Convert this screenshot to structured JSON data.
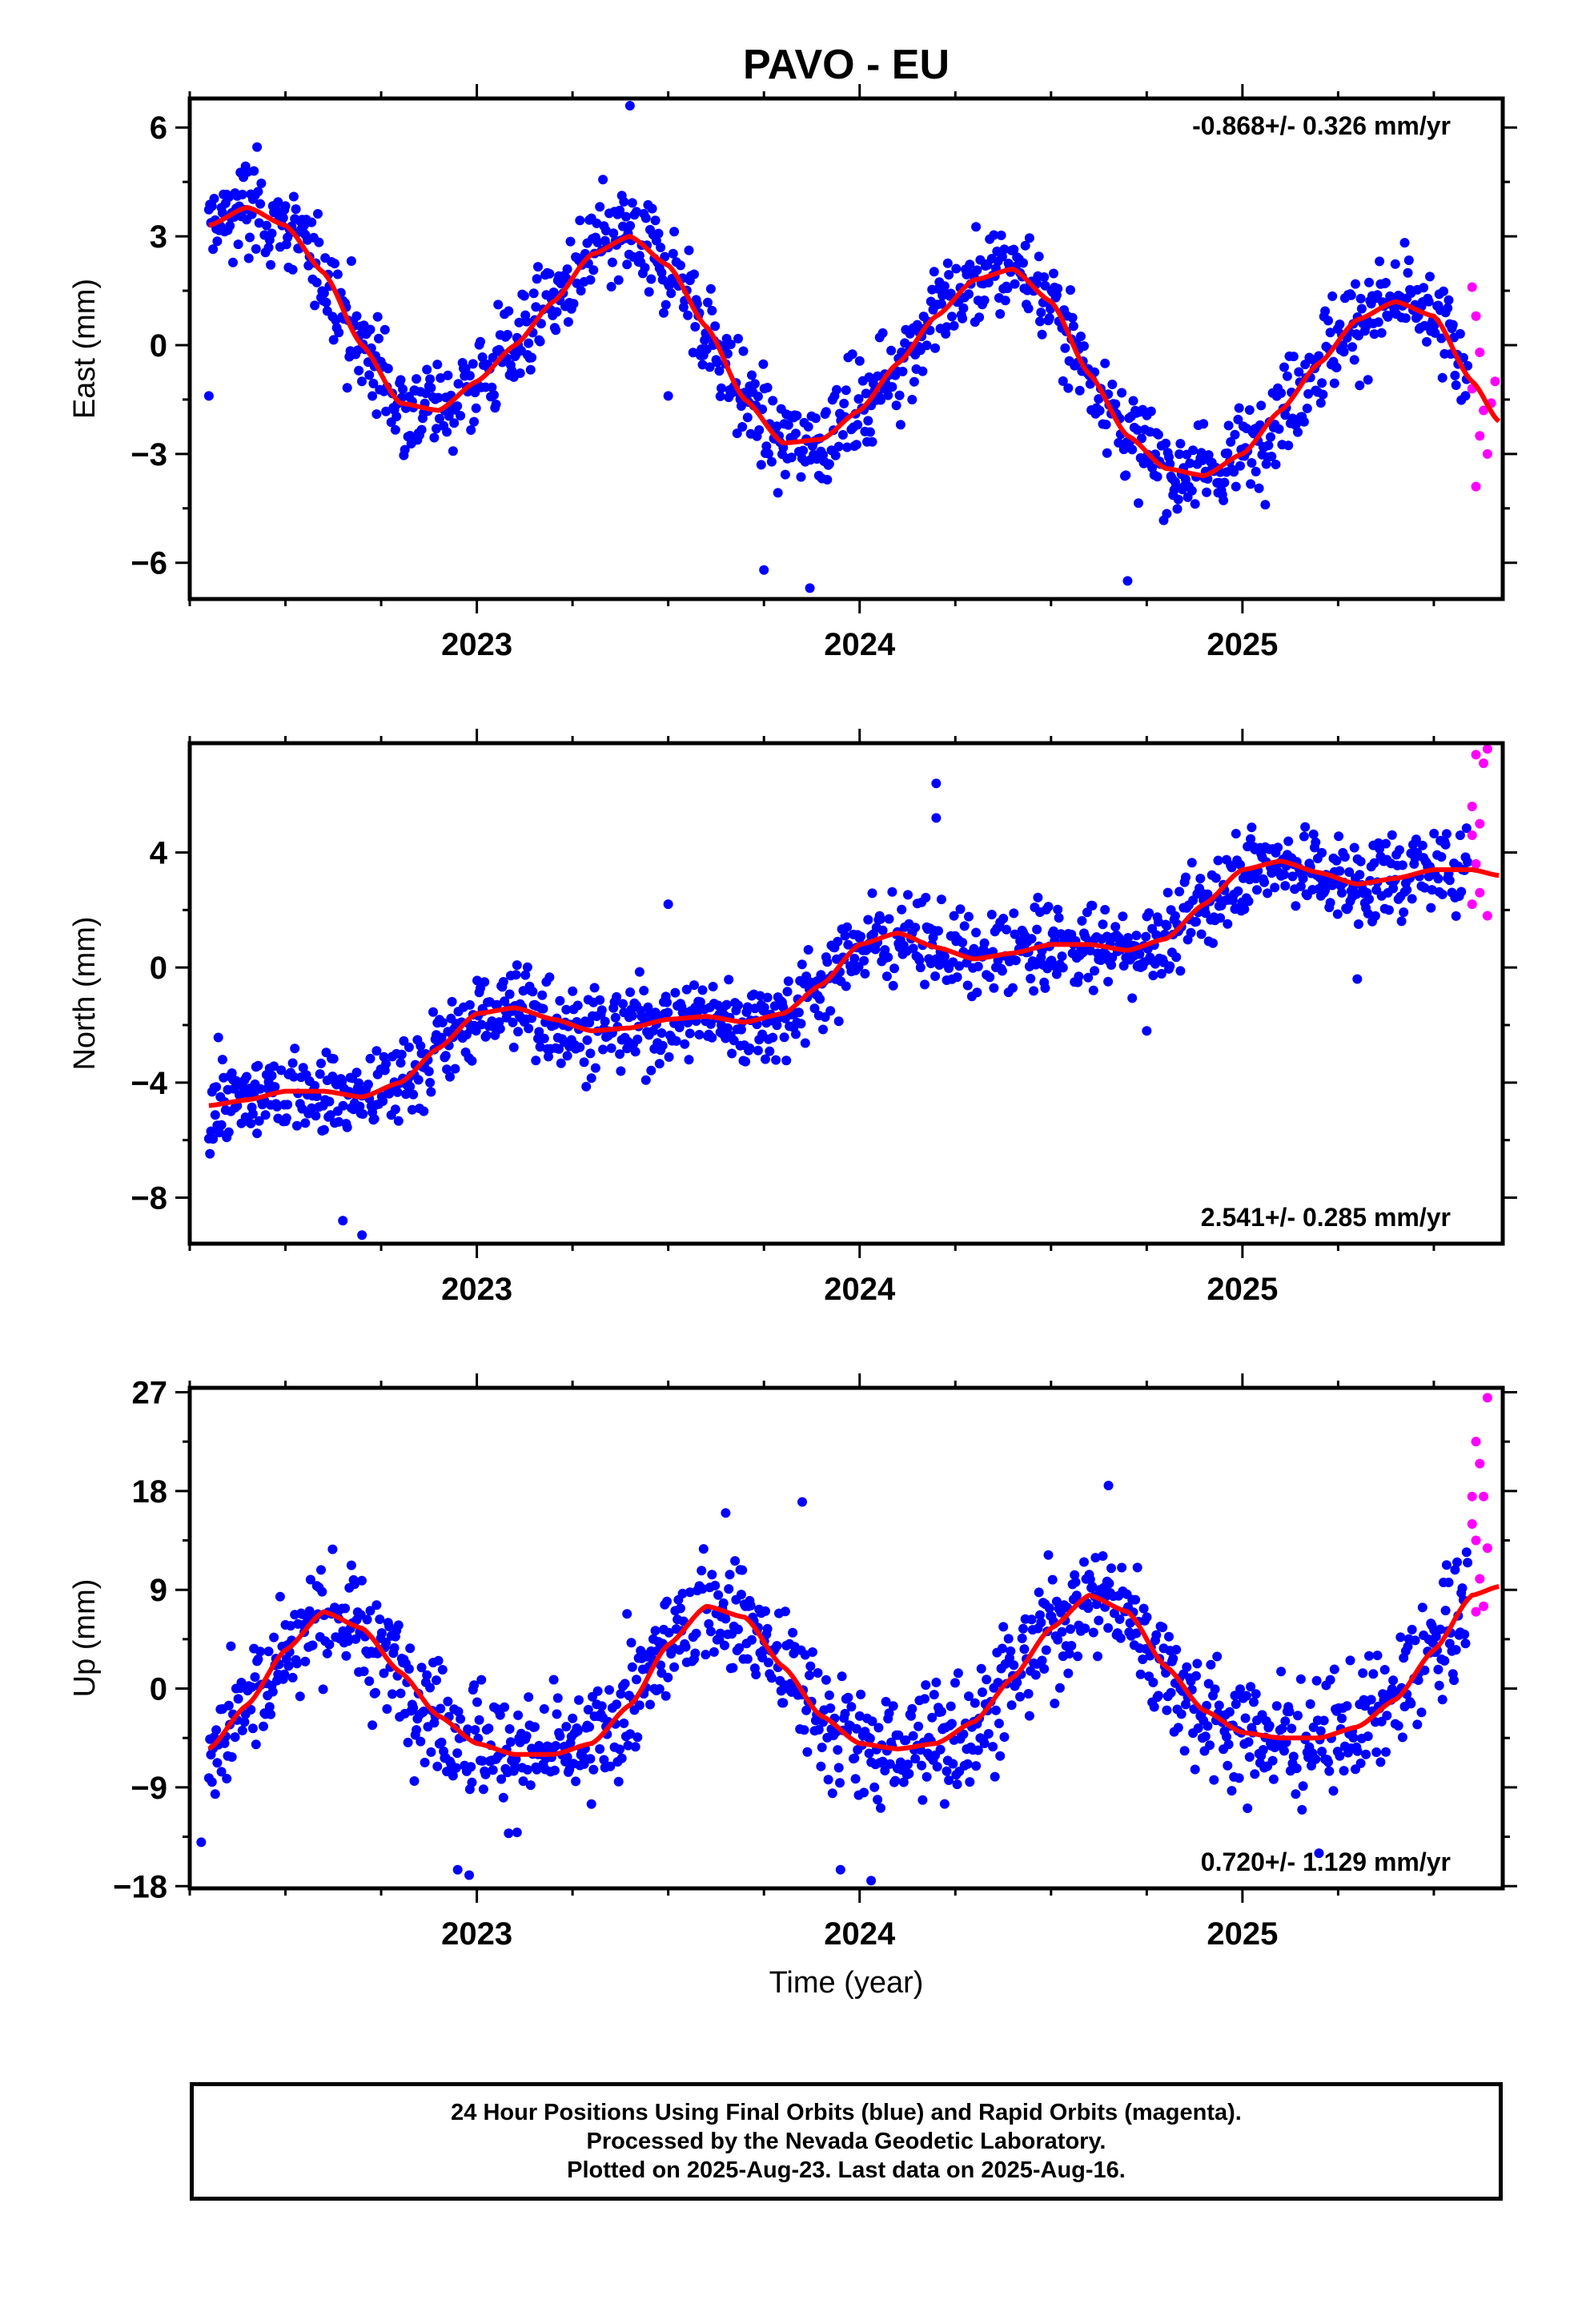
{
  "title": "PAVO - EU",
  "chart_data": {
    "type": "scatter",
    "shared_x": {
      "xlim": [
        2022.25,
        2025.68
      ],
      "major_ticks": [
        2023,
        2024,
        2025
      ],
      "tick_labels": [
        "2023",
        "2024",
        "2025"
      ],
      "minor_step": 0.25
    },
    "xlabel": "Time (year)",
    "panels": [
      {
        "id": "east",
        "ylabel": "East (mm)",
        "ylim": [
          -7.0,
          6.8
        ],
        "yticks": [
          -6,
          -3,
          0,
          3,
          6
        ],
        "ytick_labels": [
          "−6",
          "−3",
          "0",
          "3",
          "6"
        ],
        "velocity_label": "-0.868+/- 0.326 mm/yr",
        "velocity_position": "top-right",
        "grid": false,
        "fit_curve": [
          [
            2022.3,
            3.3
          ],
          [
            2022.4,
            3.8
          ],
          [
            2022.5,
            3.3
          ],
          [
            2022.6,
            2.0
          ],
          [
            2022.7,
            0.0
          ],
          [
            2022.8,
            -1.6
          ],
          [
            2022.9,
            -1.8
          ],
          [
            2023.0,
            -1.0
          ],
          [
            2023.1,
            0.0
          ],
          [
            2023.2,
            1.2
          ],
          [
            2023.3,
            2.5
          ],
          [
            2023.4,
            3.0
          ],
          [
            2023.5,
            2.2
          ],
          [
            2023.6,
            0.5
          ],
          [
            2023.7,
            -1.5
          ],
          [
            2023.8,
            -2.7
          ],
          [
            2023.9,
            -2.6
          ],
          [
            2024.0,
            -1.8
          ],
          [
            2024.1,
            -0.5
          ],
          [
            2024.2,
            0.8
          ],
          [
            2024.3,
            1.8
          ],
          [
            2024.4,
            2.1
          ],
          [
            2024.5,
            1.2
          ],
          [
            2024.6,
            -0.8
          ],
          [
            2024.7,
            -2.5
          ],
          [
            2024.8,
            -3.4
          ],
          [
            2024.9,
            -3.6
          ],
          [
            2025.0,
            -3.0
          ],
          [
            2025.1,
            -1.8
          ],
          [
            2025.2,
            -0.5
          ],
          [
            2025.3,
            0.7
          ],
          [
            2025.4,
            1.2
          ],
          [
            2025.5,
            0.8
          ],
          [
            2025.6,
            -1.0
          ],
          [
            2025.67,
            -2.1
          ]
        ],
        "scatter_sd": 1.0,
        "final_orbits": {
          "legend": "Final Orbits (blue)",
          "start": 2022.3,
          "end": 2025.59
        },
        "rapid_orbits": {
          "legend": "Rapid Orbits (magenta)",
          "points": [
            [
              2025.6,
              1.6
            ],
            [
              2025.61,
              0.8
            ],
            [
              2025.62,
              -0.2
            ],
            [
              2025.6,
              -1.2
            ],
            [
              2025.63,
              -1.8
            ],
            [
              2025.62,
              -2.5
            ],
            [
              2025.64,
              -3.0
            ],
            [
              2025.61,
              -3.9
            ],
            [
              2025.65,
              -1.6
            ],
            [
              2025.66,
              -1.0
            ]
          ]
        },
        "outliers": [
          [
            2023.75,
            -6.2
          ],
          [
            2023.87,
            -6.7
          ],
          [
            2024.7,
            -6.5
          ],
          [
            2023.4,
            6.6
          ],
          [
            2022.3,
            -1.4
          ],
          [
            2023.5,
            -1.4
          ]
        ]
      },
      {
        "id": "north",
        "ylabel": "North (mm)",
        "ylim": [
          -9.6,
          7.8
        ],
        "yticks": [
          -8,
          -4,
          0,
          4
        ],
        "ytick_labels": [
          "−8",
          "−4",
          "0",
          "4"
        ],
        "velocity_label": "2.541+/- 0.285 mm/yr",
        "velocity_position": "bottom-right",
        "grid": false,
        "fit_curve": [
          [
            2022.3,
            -4.8
          ],
          [
            2022.4,
            -4.6
          ],
          [
            2022.5,
            -4.3
          ],
          [
            2022.6,
            -4.3
          ],
          [
            2022.7,
            -4.5
          ],
          [
            2022.8,
            -4.0
          ],
          [
            2022.9,
            -2.8
          ],
          [
            2023.0,
            -1.6
          ],
          [
            2023.1,
            -1.4
          ],
          [
            2023.2,
            -1.8
          ],
          [
            2023.3,
            -2.2
          ],
          [
            2023.4,
            -2.1
          ],
          [
            2023.5,
            -1.8
          ],
          [
            2023.6,
            -1.7
          ],
          [
            2023.7,
            -1.9
          ],
          [
            2023.8,
            -1.6
          ],
          [
            2023.9,
            -0.6
          ],
          [
            2024.0,
            0.8
          ],
          [
            2024.1,
            1.2
          ],
          [
            2024.2,
            0.7
          ],
          [
            2024.3,
            0.3
          ],
          [
            2024.4,
            0.5
          ],
          [
            2024.5,
            0.8
          ],
          [
            2024.6,
            0.8
          ],
          [
            2024.7,
            0.6
          ],
          [
            2024.8,
            1.0
          ],
          [
            2024.9,
            2.2
          ],
          [
            2025.0,
            3.4
          ],
          [
            2025.1,
            3.7
          ],
          [
            2025.2,
            3.3
          ],
          [
            2025.3,
            2.9
          ],
          [
            2025.4,
            3.1
          ],
          [
            2025.5,
            3.4
          ],
          [
            2025.6,
            3.4
          ],
          [
            2025.67,
            3.2
          ]
        ],
        "scatter_sd": 1.1,
        "final_orbits": {
          "legend": "Final Orbits (blue)",
          "start": 2022.3,
          "end": 2025.59
        },
        "rapid_orbits": {
          "legend": "Rapid Orbits (magenta)",
          "points": [
            [
              2025.61,
              7.4
            ],
            [
              2025.63,
              7.1
            ],
            [
              2025.64,
              7.6
            ],
            [
              2025.6,
              5.6
            ],
            [
              2025.62,
              5.0
            ],
            [
              2025.6,
              4.6
            ],
            [
              2025.61,
              3.6
            ],
            [
              2025.62,
              2.6
            ],
            [
              2025.6,
              2.2
            ],
            [
              2025.64,
              1.8
            ]
          ]
        },
        "outliers": [
          [
            2022.65,
            -8.8
          ],
          [
            2022.7,
            -9.3
          ],
          [
            2024.2,
            6.4
          ],
          [
            2024.2,
            5.2
          ],
          [
            2024.75,
            -2.2
          ],
          [
            2025.3,
            -0.4
          ],
          [
            2023.5,
            2.2
          ]
        ]
      },
      {
        "id": "up",
        "ylabel": "Up (mm)",
        "ylim": [
          -18.2,
          27.4
        ],
        "yticks": [
          -18,
          -9,
          0,
          9,
          18,
          27
        ],
        "ytick_labels": [
          "−18",
          "−9",
          "0",
          "9",
          "18",
          "27"
        ],
        "velocity_label": "0.720+/- 1.129 mm/yr",
        "velocity_position": "bottom-right",
        "grid": false,
        "fit_curve": [
          [
            2022.3,
            -5.5
          ],
          [
            2022.4,
            -1.5
          ],
          [
            2022.5,
            3.5
          ],
          [
            2022.6,
            7.0
          ],
          [
            2022.7,
            5.5
          ],
          [
            2022.8,
            1.5
          ],
          [
            2022.9,
            -2.5
          ],
          [
            2023.0,
            -5.0
          ],
          [
            2023.1,
            -6.0
          ],
          [
            2023.2,
            -6.0
          ],
          [
            2023.3,
            -5.0
          ],
          [
            2023.4,
            -1.5
          ],
          [
            2023.5,
            4.0
          ],
          [
            2023.6,
            7.5
          ],
          [
            2023.7,
            6.5
          ],
          [
            2023.8,
            2.0
          ],
          [
            2023.9,
            -2.5
          ],
          [
            2024.0,
            -5.0
          ],
          [
            2024.1,
            -5.5
          ],
          [
            2024.2,
            -5.0
          ],
          [
            2024.3,
            -3.0
          ],
          [
            2024.4,
            1.0
          ],
          [
            2024.5,
            5.5
          ],
          [
            2024.6,
            8.5
          ],
          [
            2024.7,
            7.0
          ],
          [
            2024.8,
            2.0
          ],
          [
            2024.9,
            -2.0
          ],
          [
            2025.0,
            -4.0
          ],
          [
            2025.1,
            -4.5
          ],
          [
            2025.2,
            -4.5
          ],
          [
            2025.3,
            -3.5
          ],
          [
            2025.4,
            -1.0
          ],
          [
            2025.5,
            3.5
          ],
          [
            2025.6,
            8.5
          ],
          [
            2025.67,
            9.3
          ]
        ],
        "scatter_sd": 4.0,
        "final_orbits": {
          "legend": "Final Orbits (blue)",
          "start": 2022.3,
          "end": 2025.59
        },
        "rapid_orbits": {
          "legend": "Rapid Orbits (magenta)",
          "points": [
            [
              2025.64,
              26.5
            ],
            [
              2025.61,
              22.5
            ],
            [
              2025.62,
              20.5
            ],
            [
              2025.6,
              17.5
            ],
            [
              2025.63,
              17.5
            ],
            [
              2025.6,
              15.0
            ],
            [
              2025.61,
              13.5
            ],
            [
              2025.64,
              12.8
            ],
            [
              2025.62,
              10.0
            ],
            [
              2025.63,
              7.5
            ],
            [
              2025.61,
              7.0
            ]
          ]
        },
        "outliers": [
          [
            2022.28,
            -14.0
          ],
          [
            2022.95,
            -16.5
          ],
          [
            2022.98,
            -17.0
          ],
          [
            2023.95,
            -16.5
          ],
          [
            2024.03,
            -17.5
          ],
          [
            2024.65,
            18.5
          ],
          [
            2023.65,
            16.0
          ],
          [
            2023.85,
            17.0
          ],
          [
            2025.2,
            -15.0
          ]
        ]
      }
    ]
  },
  "caption": {
    "lines": [
      "24 Hour Positions Using Final Orbits (blue) and Rapid Orbits (magenta).",
      "Processed by the Nevada Geodetic Laboratory.",
      "Plotted on 2025-Aug-23. Last data on 2025-Aug-16."
    ]
  },
  "colors": {
    "final_orbits": "#0000ff",
    "rapid_orbits": "#ff00ff",
    "fit_curve": "#ff0000",
    "axes": "#000000"
  }
}
